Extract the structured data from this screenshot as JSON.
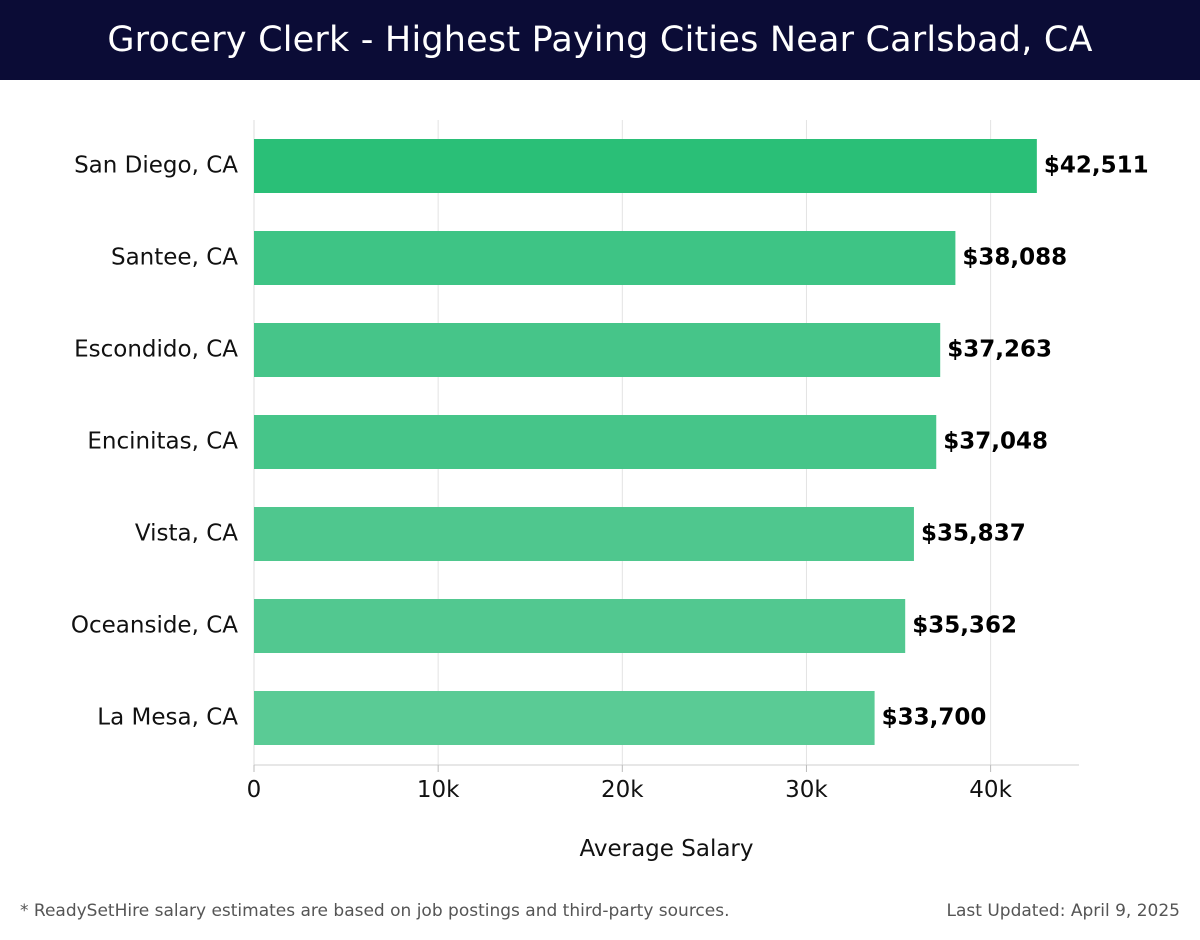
{
  "header": {
    "title": "Grocery Clerk - Highest Paying Cities Near Carlsbad, CA"
  },
  "chart_data": {
    "type": "bar",
    "orientation": "horizontal",
    "title": "Grocery Clerk - Highest Paying Cities Near Carlsbad, CA",
    "categories": [
      "San Diego, CA",
      "Santee, CA",
      "Escondido, CA",
      "Encinitas, CA",
      "Vista, CA",
      "Oceanside, CA",
      "La Mesa, CA"
    ],
    "values": [
      42511,
      38088,
      37263,
      37048,
      35837,
      35362,
      33700
    ],
    "value_labels": [
      "$42,511",
      "$38,088",
      "$37,263",
      "$37,048",
      "$35,837",
      "$35,362",
      "$33,700"
    ],
    "xlabel": "Average Salary",
    "ylabel": "",
    "xlim": [
      0,
      44800
    ],
    "xticks": [
      0,
      10000,
      20000,
      30000,
      40000
    ],
    "xtick_labels": [
      "0",
      "10k",
      "20k",
      "30k",
      "40k"
    ],
    "grid": true,
    "colors": [
      "#2abf77",
      "#3ec485",
      "#46c589",
      "#46c589",
      "#4fc78e",
      "#52c890",
      "#5acb95"
    ]
  },
  "footer": {
    "note": "* ReadySetHire salary estimates are based on job postings and third-party sources.",
    "updated": "Last Updated: April 9, 2025"
  }
}
